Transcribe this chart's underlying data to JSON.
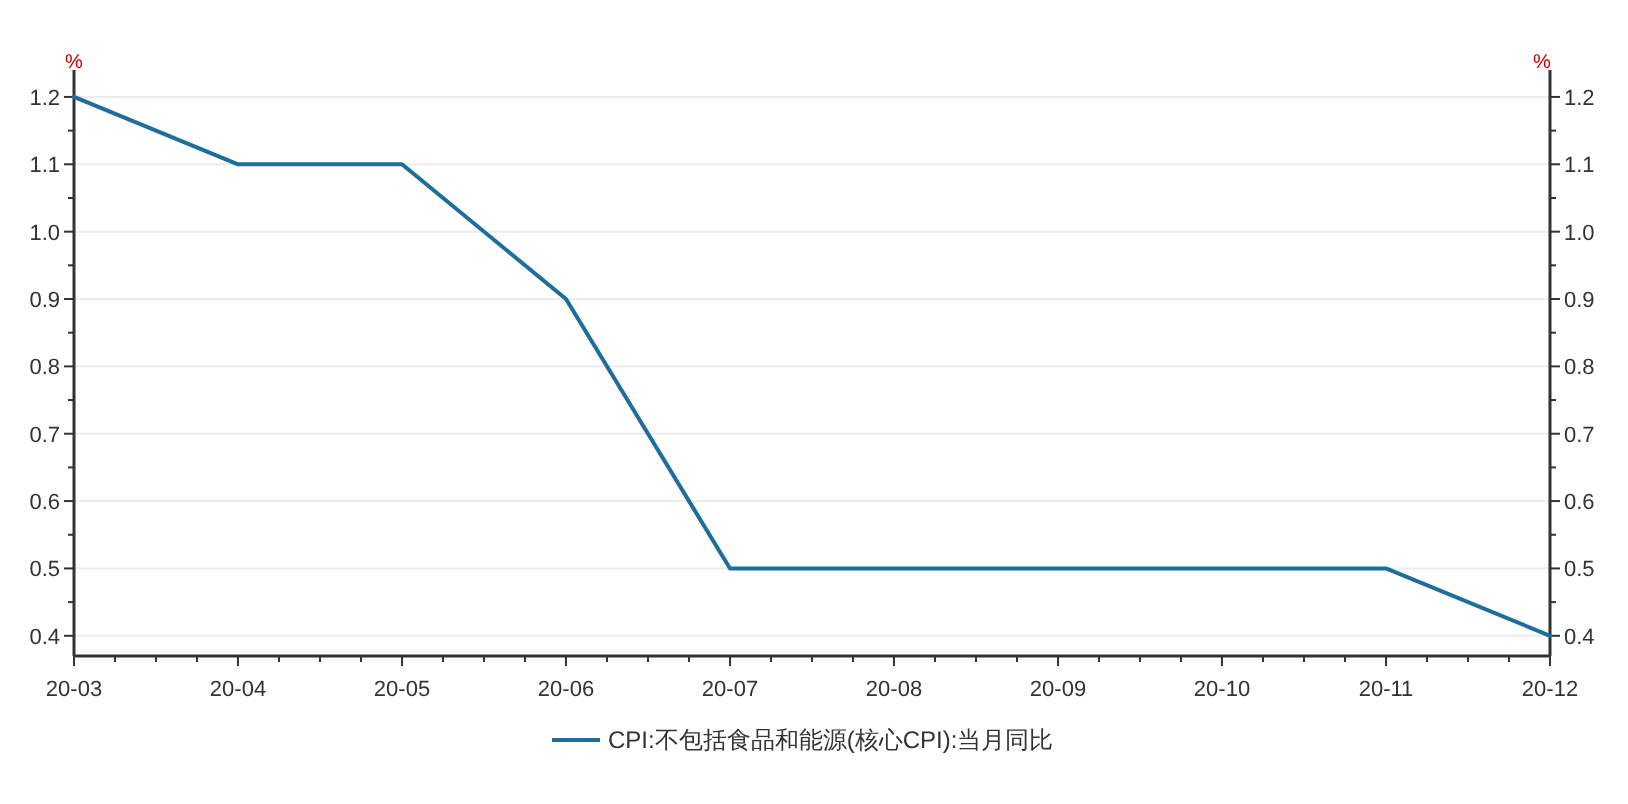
{
  "chart_data": {
    "type": "line",
    "categories": [
      "20-03",
      "20-04",
      "20-05",
      "20-06",
      "20-07",
      "20-08",
      "20-09",
      "20-10",
      "20-11",
      "20-12"
    ],
    "series": [
      {
        "name": "CPI:不包括食品和能源(核心CPI):当月同比",
        "color": "#1d6e9c",
        "values": [
          1.2,
          1.1,
          1.1,
          0.9,
          0.5,
          0.5,
          0.5,
          0.5,
          0.5,
          0.4
        ]
      }
    ],
    "ylabel": "%",
    "y2label": "%",
    "ylim": [
      0.37,
      1.24
    ],
    "yticks": [
      0.4,
      0.5,
      0.6,
      0.7,
      0.8,
      0.9,
      {
        "value": 1,
        "label": "1.0"
      },
      1.1,
      1.2
    ],
    "y2lim": [
      0.37,
      1.24
    ],
    "y2ticks": [
      0.4,
      0.5,
      0.6,
      0.7,
      0.8,
      0.9,
      {
        "value": 1,
        "label": "1.0"
      },
      1.1,
      1.2
    ],
    "grid": "y",
    "legend": "bottom",
    "marker": "none",
    "line_style": "solid"
  }
}
